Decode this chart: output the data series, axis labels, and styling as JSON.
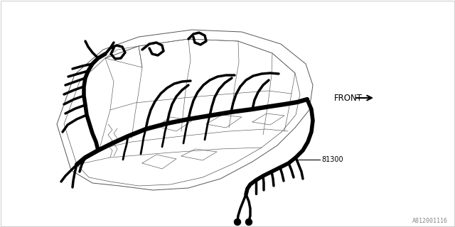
{
  "bg_color": "#ffffff",
  "border_color": "#d0d0d0",
  "line_color": "#000000",
  "thin_line_color": "#555555",
  "label_81300": "81300",
  "label_front": "FRONT",
  "label_part_num": "A812001116",
  "label_fontsize": 7,
  "figsize": [
    6.4,
    3.2
  ],
  "dpi": 100
}
